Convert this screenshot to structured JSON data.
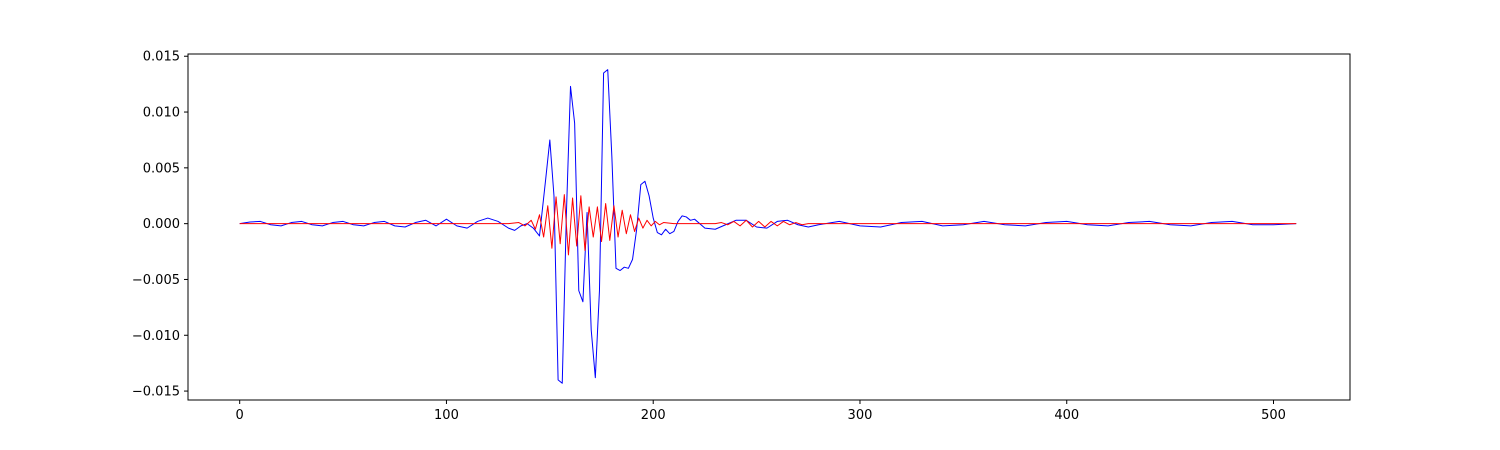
{
  "chart_data": {
    "type": "line",
    "title": "",
    "xlabel": "",
    "ylabel": "",
    "xlim": [
      -25,
      537
    ],
    "ylim": [
      -0.0158,
      0.0152
    ],
    "x_ticks": [
      0,
      100,
      200,
      300,
      400,
      500
    ],
    "x_tick_labels": [
      "0",
      "100",
      "200",
      "300",
      "400",
      "500"
    ],
    "y_ticks": [
      -0.015,
      -0.01,
      -0.005,
      0.0,
      0.005,
      0.01,
      0.015
    ],
    "y_tick_labels": [
      "−0.015",
      "−0.010",
      "−0.005",
      "0.000",
      "0.005",
      "0.010",
      "0.015"
    ],
    "grid": false,
    "legend": "none",
    "series": [
      {
        "color": "#0000ff",
        "x": [
          0,
          5,
          10,
          15,
          20,
          25,
          30,
          35,
          40,
          45,
          50,
          55,
          60,
          65,
          70,
          75,
          80,
          85,
          90,
          95,
          100,
          105,
          110,
          115,
          120,
          125,
          130,
          133,
          136,
          139,
          142,
          145,
          148,
          150,
          152,
          154,
          156,
          158,
          160,
          162,
          164,
          166,
          168,
          170,
          172,
          174,
          176,
          178,
          180,
          182,
          184,
          186,
          188,
          190,
          192,
          194,
          196,
          198,
          200,
          202,
          204,
          206,
          208,
          210,
          212,
          214,
          216,
          218,
          220,
          225,
          230,
          235,
          240,
          245,
          250,
          255,
          260,
          265,
          270,
          275,
          280,
          290,
          300,
          310,
          320,
          330,
          340,
          350,
          360,
          370,
          380,
          390,
          400,
          410,
          420,
          430,
          440,
          450,
          460,
          470,
          480,
          490,
          500,
          511
        ],
        "y": [
          0.0,
          0.00015,
          0.0002,
          -0.0001,
          -0.0002,
          0.0001,
          0.0002,
          -0.0001,
          -0.0002,
          0.0001,
          0.0002,
          -0.0001,
          -0.0002,
          0.0001,
          0.0002,
          -0.0002,
          -0.0003,
          0.0001,
          0.0003,
          -0.0002,
          0.0004,
          -0.0002,
          -0.0004,
          0.0002,
          0.0005,
          0.0002,
          -0.0004,
          -0.0006,
          -0.0002,
          0.0,
          -0.0004,
          -0.0011,
          0.004,
          0.0075,
          0.0025,
          -0.014,
          -0.0143,
          0.0008,
          0.0123,
          0.009,
          -0.006,
          -0.007,
          0.001,
          -0.0095,
          -0.0138,
          -0.006,
          0.0135,
          0.0138,
          0.006,
          -0.004,
          -0.0042,
          -0.0039,
          -0.004,
          -0.0032,
          -0.0005,
          0.0035,
          0.0038,
          0.0025,
          0.0005,
          -0.0008,
          -0.001,
          -0.0005,
          -0.0009,
          -0.0007,
          0.0002,
          0.0007,
          0.0006,
          0.0003,
          0.0004,
          -0.0004,
          -0.0005,
          -0.0001,
          0.0003,
          0.0003,
          -0.0003,
          -0.0004,
          0.0002,
          0.0003,
          -0.0001,
          -0.0003,
          -0.0001,
          0.0002,
          -0.0002,
          -0.0003,
          0.0001,
          0.0002,
          -0.0002,
          -0.0001,
          0.0002,
          -0.0001,
          -0.0002,
          0.0001,
          0.0002,
          -0.0001,
          -0.0002,
          0.0001,
          0.0002,
          -0.0001,
          -0.0002,
          0.0001,
          0.0002,
          -0.0001,
          -0.0001,
          0.0
        ]
      },
      {
        "color": "#ff0000",
        "x": [
          0,
          100,
          130,
          135,
          138,
          141,
          143,
          145,
          147,
          149,
          151,
          153,
          155,
          157,
          159,
          161,
          163,
          165,
          167,
          169,
          171,
          173,
          175,
          177,
          179,
          181,
          183,
          185,
          187,
          189,
          191,
          193,
          195,
          197,
          199,
          201,
          203,
          205,
          210,
          215,
          220,
          225,
          230,
          233,
          236,
          239,
          242,
          245,
          248,
          251,
          254,
          257,
          260,
          263,
          266,
          269,
          272,
          275,
          280,
          300,
          400,
          511
        ],
        "y": [
          0.0,
          0.0,
          0.0,
          0.0001,
          -0.0002,
          0.0003,
          -0.0005,
          0.0008,
          -0.0012,
          0.0016,
          -0.0022,
          0.0024,
          -0.0018,
          0.0026,
          -0.0028,
          0.0023,
          -0.002,
          0.0025,
          -0.0024,
          0.0015,
          -0.0012,
          0.0015,
          -0.0016,
          0.0018,
          -0.0015,
          0.0016,
          -0.0012,
          0.0012,
          -0.0009,
          0.0008,
          -0.0007,
          0.0005,
          -0.0004,
          0.0003,
          -0.0002,
          0.0002,
          -0.0001,
          0.0001,
          0.0,
          0.0,
          0.0,
          0.0,
          0.0,
          0.0001,
          -0.0001,
          0.0002,
          -0.0002,
          0.0003,
          -0.0003,
          0.0002,
          -0.0003,
          0.0002,
          -0.0002,
          0.0002,
          -0.0001,
          0.0001,
          -0.0001,
          0.0,
          0.0,
          0.0,
          0.0,
          0.0
        ]
      }
    ]
  }
}
